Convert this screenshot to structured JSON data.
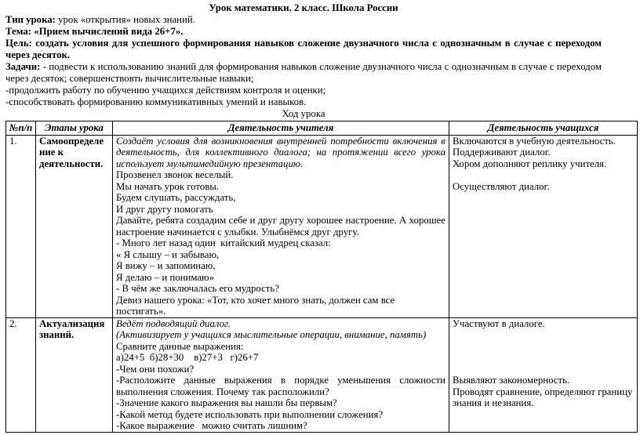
{
  "head": {
    "title": "Урок математики. 2 класс. Школа России",
    "type_label": "Тип урока:",
    "type_text": " урок «открытия» новых знаний.",
    "theme_line": "Тема: «Прием вычислений вида 26+7».",
    "goal_label": "Цель:",
    "goal_text": " создать условия для успешного формирования навыков сложение двузначного числа с однозначным в случае с переходом через десяток.",
    "tasks_label": "Задачи:",
    "tasks_text": " - подвести к использованию знаний  для формирования навыков сложение двузначного числа с однозначным в случае с переходом через десяток;  совершенствовть  вычислительные навыки;",
    "task_line2": "-продолжить работу по обучению учащихся действиям контроля и оценки;",
    "task_line3": "-способствовать формированию коммуникативных умений и навыков.",
    "table_caption": "Ход урока"
  },
  "table": {
    "headers": [
      "№п/п",
      "Этапы урока",
      "Деятельность учителя",
      "Деятельность учащихся"
    ],
    "rows": [
      {
        "num": "1.",
        "stage": "Самоопределение к деятельности.",
        "teacher": [
          "Создаёт условия для возникновения внутренней потребности включения в деятельность, для коллективного диалога; на протяжении всего урока использует мультимедийную презентацию.",
          "Прозвенел звонок веселый.",
          "Мы начать урок готовы.",
          "Будем слушать, рассуждать,",
          "И друг другу помогать",
          "Давайте, ребята создадим себе и друг другу хорошее настроение. А хорошее настроение начинается с улыбки. Улыбнёмся друг другу.",
          "- Много лет назад один  китайский мудрец сказал:",
          "« Я слышу – и забываю,",
          "Я вижу – и запоминаю,",
          "Я делаю – и понимаю»",
          "- В чём же заключалась его мудрость?",
          "Девиз нашего урока: «Тот, кто хочет много знать, должен сам все постигать»."
        ],
        "students": [
          "Включаются в учебную деятельность.",
          "Поддерживают диалог.",
          "Хором дополняют реплику учителя.",
          "Осуществляют диалог."
        ]
      },
      {
        "num": "2.",
        "stage": "Актуализация знаний.",
        "teacher": [
          "Ведёт подводящий диалог.",
          "(Активизирует у учащихся мыслительные операции, внимание, память)",
          "Сравните данные выражения:",
          "а)24+5  б)28+30    в)27+3   г)26+7",
          "-Чем они похожи?",
          "-Расположите данные выражения в порядке уменьшения сложности выполнения сложения. Почему так  расположили?",
          "-Значение какого выражения вы нашли бы первым?",
          "-Какой метод  будете использовать при выполнении сложения?",
          "-Какое выражение   можно считать лишним?"
        ],
        "students": [
          "Участвуют в диалоге.",
          "Выявляют закономерность.",
          "Проводят сравнение, определяют границу знания и незнания."
        ]
      }
    ]
  }
}
